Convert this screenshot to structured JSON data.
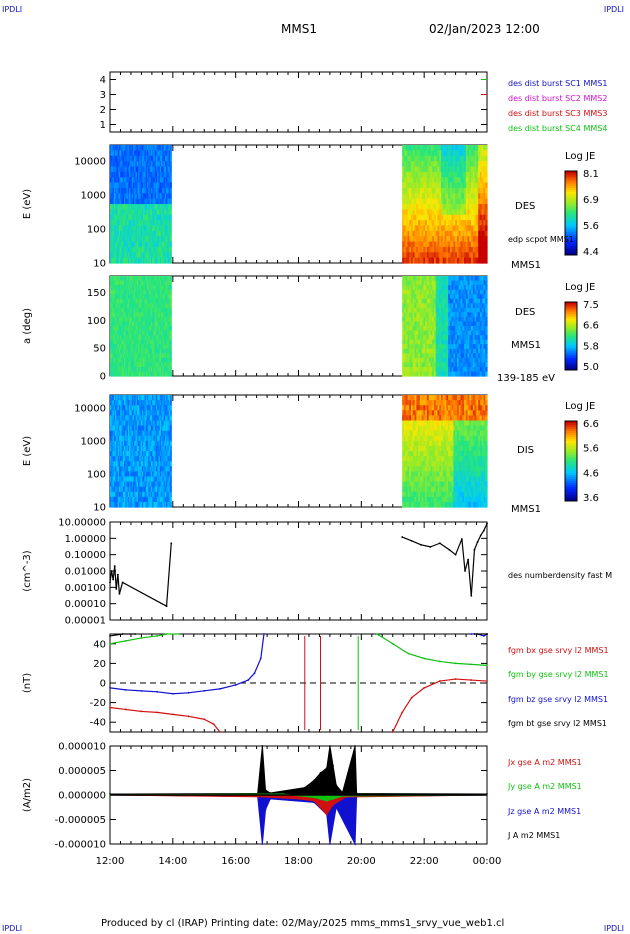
{
  "header": {
    "corner_tl": "IPDLI",
    "corner_tr": "IPDLI",
    "title": "MMS1",
    "datetime": "02/Jan/2023 12:00"
  },
  "footer": {
    "text": "Produced by cl (IRAP)   Printing date: 02/May/2025   mms_mms1_srvy_vue_web1.cl",
    "corner_bl": "IPDLI",
    "corner_br": "IPDLI"
  },
  "colors": {
    "red": "#d01010",
    "magenta": "#d010d0",
    "green": "#10c010",
    "blue": "#1010d0",
    "black": "#000000",
    "legend_blue": "#1010c0"
  },
  "chart_data": [
    {
      "id": "burst",
      "type": "line",
      "ylim": [
        0.5,
        4.5
      ],
      "yticks": [
        "1",
        "2",
        "3",
        "4"
      ],
      "legend": [
        {
          "label": "des dist burst SC1 MMS1",
          "color": "#1010c0"
        },
        {
          "label": "des dist burst SC2 MMS2",
          "color": "#d010d0"
        },
        {
          "label": "des dist burst SC3 MMS3",
          "color": "#d01010"
        },
        {
          "label": "des dist burst SC4 MMS4",
          "color": "#10c010"
        }
      ]
    },
    {
      "id": "des-energy",
      "type": "heatmap",
      "ylabel": "E (eV)",
      "yscale": "log",
      "ylim": [
        10,
        30000
      ],
      "yticks": [
        "10000",
        "1000",
        "100",
        "10"
      ],
      "label": "DES",
      "sublabel": "MMS1",
      "annotation": "edp scpot MMS1",
      "colorbar": {
        "title": "Log JE",
        "ticks": [
          "8.1",
          "6.9",
          "5.6",
          "4.4"
        ],
        "range": [
          4.4,
          8.1
        ]
      }
    },
    {
      "id": "des-pitch",
      "type": "heatmap",
      "ylabel": "a (deg)",
      "ylim": [
        0,
        180
      ],
      "yticks": [
        "150",
        "100",
        "50",
        "0"
      ],
      "label": "DES",
      "sublabel": "MMS1",
      "energy_range": "139-185 eV",
      "colorbar": {
        "title": "Log JE",
        "ticks": [
          "7.5",
          "6.6",
          "5.8",
          "5.0"
        ],
        "range": [
          5.0,
          7.5
        ]
      }
    },
    {
      "id": "dis-energy",
      "type": "heatmap",
      "ylabel": "E (eV)",
      "yscale": "log",
      "ylim": [
        10,
        25000
      ],
      "yticks": [
        "10000",
        "1000",
        "100",
        "10"
      ],
      "label": "DIS",
      "sublabel": "MMS1",
      "colorbar": {
        "title": "Log JE",
        "ticks": [
          "6.6",
          "5.6",
          "4.6",
          "3.6"
        ],
        "range": [
          3.6,
          6.6
        ]
      }
    },
    {
      "id": "density",
      "type": "line",
      "ylabel": "(cm^-3)",
      "yscale": "log",
      "ylim": [
        1e-05,
        10
      ],
      "yticks": [
        "10.00000",
        "1.00000",
        "0.10000",
        "0.01000",
        "0.00100",
        "0.00010",
        "0.00001"
      ],
      "legend": [
        {
          "label": "des numberdensity fast M",
          "color": "#000000"
        }
      ],
      "series": [
        {
          "name": "des numberdensity fast M",
          "x": [
            12.0,
            12.05,
            12.1,
            12.15,
            12.2,
            12.25,
            12.3,
            12.4,
            13.8,
            13.95,
            21.3,
            21.6,
            21.9,
            22.2,
            22.5,
            22.8,
            23.0,
            23.2,
            23.3,
            23.4,
            23.5,
            23.6,
            23.7,
            23.8,
            23.9,
            24.0
          ],
          "y": [
            0.002,
            0.01,
            0.003,
            0.02,
            0.0008,
            0.006,
            0.0004,
            0.002,
            7e-05,
            0.5,
            1.2,
            0.7,
            0.4,
            0.3,
            0.5,
            0.2,
            0.1,
            0.9,
            0.01,
            0.05,
            0.0003,
            0.2,
            0.6,
            1.5,
            3.0,
            8.0
          ]
        }
      ]
    },
    {
      "id": "magnetic-field",
      "type": "line",
      "ylabel": "(nT)",
      "ylim": [
        -50,
        50
      ],
      "yticks": [
        "40",
        "20",
        "0",
        "-20",
        "-40"
      ],
      "legend": [
        {
          "label": "fgm bx gse srvy l2 MMS1",
          "color": "#d01010"
        },
        {
          "label": "fgm by gse srvy l2 MMS1",
          "color": "#10c010"
        },
        {
          "label": "fgm bz gse srvy l2 MMS1",
          "color": "#1010d0"
        },
        {
          "label": "fgm bt gse srvy l2 MMS1",
          "color": "#000000"
        }
      ],
      "series": [
        {
          "name": "fgm bx gse srvy l2 MMS1",
          "x": [
            12.0,
            12.5,
            13.0,
            13.5,
            14.0,
            14.5,
            15.0,
            15.3,
            15.5,
            21.0,
            21.3,
            21.6,
            22.0,
            22.5,
            23.0,
            23.5,
            24.0
          ],
          "y": [
            -25,
            -27,
            -29,
            -30,
            -32,
            -34,
            -37,
            -42,
            -55,
            -55,
            -30,
            -15,
            -5,
            2,
            4,
            3,
            2
          ]
        },
        {
          "name": "fgm by gse srvy l2 MMS1",
          "x": [
            12.0,
            12.5,
            13.0,
            13.5,
            13.8,
            14.2,
            20.5,
            21.0,
            21.5,
            22.0,
            22.5,
            23.0,
            23.5,
            24.0
          ],
          "y": [
            40,
            43,
            46,
            48,
            50,
            55,
            55,
            40,
            30,
            25,
            22,
            20,
            19,
            18
          ]
        },
        {
          "name": "fgm bz gse srvy l2 MMS1",
          "x": [
            12.0,
            12.5,
            13.0,
            13.5,
            14.0,
            14.5,
            15.0,
            15.5,
            16.0,
            16.4,
            16.6,
            16.8,
            16.9,
            23.5,
            23.7,
            23.9,
            24.0
          ],
          "y": [
            -5,
            -7,
            -8,
            -9,
            -11,
            -10,
            -8,
            -6,
            -2,
            3,
            10,
            25,
            55,
            55,
            50,
            48,
            50
          ]
        },
        {
          "name": "fgm bt gse srvy l2 MMS1",
          "x": [
            12.0,
            12.4,
            12.8,
            23.6,
            24.0
          ],
          "y": [
            48,
            50,
            52,
            52,
            52
          ]
        }
      ],
      "reference_line": 0
    },
    {
      "id": "current-density",
      "type": "line",
      "ylabel": "(A/m2)",
      "ylim": [
        -1e-05,
        1e-05
      ],
      "yticks": [
        "0.000010",
        "0.000005",
        "0.000000",
        "-0.000005",
        "-0.000010"
      ],
      "x_ticks": [
        "12:00",
        "14:00",
        "16:00",
        "18:00",
        "20:00",
        "22:00",
        "00:00"
      ],
      "x_range": [
        12,
        24
      ],
      "legend": [
        {
          "label": "Jx gse A m2 MMS1",
          "color": "#d01010"
        },
        {
          "label": "Jy gse A m2 MMS1",
          "color": "#10c010"
        },
        {
          "label": "Jz gse A m2 MMS1",
          "color": "#1010d0"
        },
        {
          "label": "J A m2 MMS1",
          "color": "#000000"
        }
      ],
      "series": [
        {
          "name": "J A m2 MMS1",
          "x": [
            12.0,
            16.7,
            16.85,
            16.95,
            17.1,
            18.2,
            18.5,
            18.7,
            18.9,
            19.0,
            19.1,
            19.2,
            19.4,
            19.8,
            19.85,
            24.0
          ],
          "y": [
            2e-07,
            3e-07,
            1e-05,
            1e-06,
            4e-07,
            1.5e-06,
            3e-06,
            4.5e-06,
            5.5e-06,
            1e-05,
            6e-06,
            2e-06,
            5e-07,
            1e-05,
            3e-07,
            2e-07
          ]
        },
        {
          "name": "Jz gse A m2 MMS1",
          "x": [
            12.0,
            16.7,
            16.85,
            16.95,
            17.1,
            18.5,
            18.9,
            19.0,
            19.2,
            19.8,
            19.85,
            24.0
          ],
          "y": [
            0,
            -3e-07,
            -1e-05,
            -3e-06,
            -8e-07,
            -1.5e-06,
            -4e-06,
            -1e-05,
            -2.5e-06,
            -1e-05,
            -3e-07,
            0
          ]
        },
        {
          "name": "Jx gse A m2 MMS1",
          "x": [
            12.0,
            17.0,
            17.5,
            18.0,
            18.5,
            18.9,
            19.1,
            19.5,
            24.0
          ],
          "y": [
            0,
            -4e-07,
            -6e-07,
            -8e-07,
            -1.2e-06,
            -4e-06,
            -2e-06,
            -4e-07,
            0
          ]
        },
        {
          "name": "Jy gse A m2 MMS1",
          "x": [
            12.0,
            17.5,
            18.5,
            18.9,
            19.1,
            19.4,
            24.0
          ],
          "y": [
            0,
            2e-07,
            -5e-07,
            -1.2e-06,
            -8e-07,
            -2e-07,
            0
          ]
        }
      ]
    }
  ]
}
